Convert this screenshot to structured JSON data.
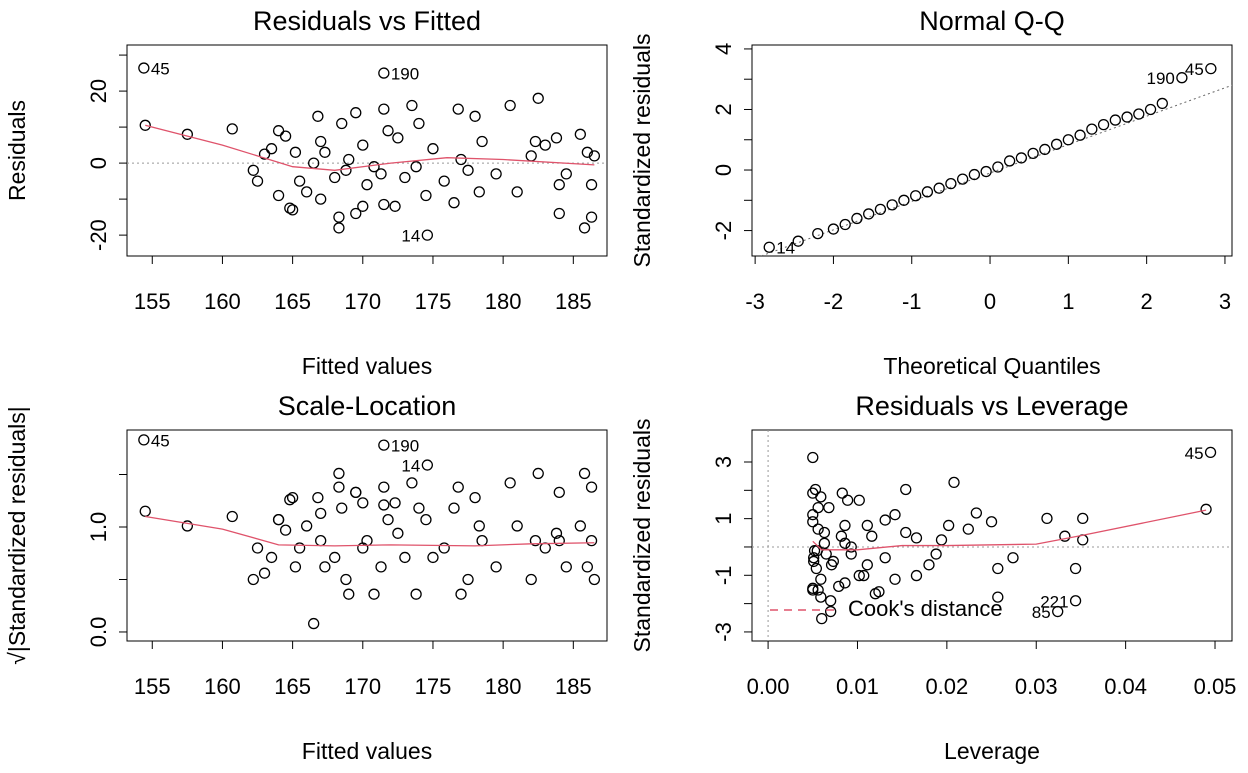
{
  "chart_data": [
    {
      "type": "scatter",
      "title": "Residuals vs Fitted",
      "xlabel": "Fitted values",
      "ylabel": "Residuals",
      "xlim": [
        153.2,
        187.4
      ],
      "ylim": [
        -25.8,
        32.8
      ],
      "xticks": [
        155,
        160,
        165,
        170,
        175,
        180,
        185
      ],
      "yticks": [
        -20,
        {
          "value": -10,
          "label": null
        },
        0,
        {
          "value": 10,
          "label": null
        },
        20,
        {
          "value": 30,
          "label": null
        }
      ],
      "color": "#000000",
      "hline": 0,
      "x": [
        154.5,
        154.4,
        157.5,
        160.7,
        162.2,
        162.5,
        163,
        163.5,
        164,
        164,
        164.5,
        164.8,
        165,
        165.2,
        165.5,
        166,
        166.5,
        166.8,
        167,
        167,
        167.3,
        168,
        168.3,
        168.3,
        168.5,
        168.8,
        169,
        169.5,
        169.5,
        170,
        170,
        170.3,
        170.8,
        171.3,
        171.5,
        171.5,
        171.5,
        171.8,
        172.3,
        172.5,
        173,
        173.5,
        173.8,
        174,
        174.5,
        174.6,
        175,
        175.8,
        176.5,
        176.8,
        177,
        177.5,
        178,
        178.3,
        178.5,
        179.5,
        180.5,
        181,
        182,
        182.3,
        182.5,
        183,
        183.8,
        184,
        184,
        184.5,
        185.5,
        185.8,
        186,
        186.3,
        186.3,
        186.5
      ],
      "values": [
        10.5,
        26.4,
        8,
        9.5,
        -2,
        -5,
        2.5,
        4,
        9,
        -9,
        7.5,
        -12.5,
        -13,
        3,
        -5,
        -8,
        0,
        13,
        -10,
        6,
        3,
        -4,
        -18,
        -15,
        11,
        -2,
        1,
        14,
        -14,
        -12,
        5,
        -6,
        -1,
        -3,
        25,
        15,
        -11.5,
        9,
        -12,
        7,
        -4,
        16,
        -1,
        11,
        -9,
        -20,
        4,
        -5,
        -11,
        15,
        1,
        -2,
        13,
        -8,
        6,
        -3,
        16,
        -8,
        2,
        6,
        18,
        5,
        7,
        -6,
        -14,
        -3,
        8,
        -18,
        3,
        -6,
        -15,
        2
      ],
      "point_labels": [
        null,
        "45",
        null,
        null,
        null,
        null,
        null,
        null,
        null,
        null,
        null,
        null,
        null,
        null,
        null,
        null,
        null,
        null,
        null,
        null,
        null,
        null,
        null,
        null,
        null,
        null,
        null,
        null,
        null,
        null,
        null,
        null,
        null,
        null,
        "190",
        null,
        null,
        null,
        null,
        null,
        null,
        null,
        null,
        null,
        null,
        "14",
        null,
        null,
        null,
        null,
        null,
        null,
        null,
        null,
        null,
        null,
        null,
        null,
        null,
        null,
        null,
        null,
        null,
        null,
        null,
        null,
        null,
        null,
        null,
        null,
        null,
        null
      ],
      "smooth": {
        "color": "#DF536B",
        "x": [
          154.5,
          160,
          165,
          168,
          172,
          176,
          180,
          186.5
        ],
        "y": [
          10.5,
          5,
          -1,
          -2,
          0,
          1.5,
          1,
          -0.5
        ]
      }
    },
    {
      "type": "scatter",
      "title": "Normal Q-Q",
      "xlabel": "Theoretical Quantiles",
      "ylabel": "Standardized residuals",
      "xlim": [
        -3.04,
        3.09
      ],
      "ylim": [
        -2.84,
        4.13
      ],
      "xticks": [
        -3,
        -2,
        -1,
        0,
        1,
        2,
        3
      ],
      "yticks": [
        -2,
        {
          "value": -1,
          "label": null
        },
        0,
        {
          "value": 1,
          "label": null
        },
        2,
        {
          "value": 3,
          "label": null
        },
        4
      ],
      "color": "#000000",
      "x": [
        -2.82,
        -2.45,
        -2.2,
        -2.0,
        -1.85,
        -1.7,
        -1.55,
        -1.4,
        -1.25,
        -1.1,
        -0.95,
        -0.8,
        -0.65,
        -0.5,
        -0.35,
        -0.2,
        -0.05,
        0.1,
        0.25,
        0.4,
        0.55,
        0.7,
        0.85,
        1.0,
        1.15,
        1.3,
        1.45,
        1.6,
        1.75,
        1.9,
        2.05,
        2.2,
        2.45,
        2.82
      ],
      "values": [
        -2.55,
        -2.35,
        -2.1,
        -1.95,
        -1.8,
        -1.6,
        -1.45,
        -1.3,
        -1.15,
        -1.0,
        -0.85,
        -0.72,
        -0.6,
        -0.45,
        -0.3,
        -0.15,
        -0.05,
        0.1,
        0.3,
        0.4,
        0.55,
        0.68,
        0.85,
        1.0,
        1.15,
        1.35,
        1.5,
        1.65,
        1.75,
        1.85,
        2.0,
        2.2,
        3.05,
        3.35
      ],
      "point_labels": [
        "14",
        null,
        null,
        null,
        null,
        null,
        null,
        null,
        null,
        null,
        null,
        null,
        null,
        null,
        null,
        null,
        null,
        null,
        null,
        null,
        null,
        null,
        null,
        null,
        null,
        null,
        null,
        null,
        null,
        null,
        null,
        null,
        "190",
        "45"
      ],
      "qq_line": {
        "x": [
          -3.04,
          3.09
        ],
        "y": [
          -2.95,
          2.8
        ]
      }
    },
    {
      "type": "scatter",
      "title": "Scale-Location",
      "xlabel": "Fitted values",
      "ylabel": "√|Standardized residuals|",
      "xlim": [
        153.2,
        187.4
      ],
      "ylim": [
        -0.086,
        1.924
      ],
      "xticks": [
        155,
        160,
        165,
        170,
        175,
        180,
        185
      ],
      "yticks": [
        {
          "value": 0,
          "label": "0.0"
        },
        {
          "value": 0.5,
          "label": null
        },
        {
          "value": 1,
          "label": "1.0"
        },
        {
          "value": 1.5,
          "label": null
        }
      ],
      "color": "#000000",
      "x": [
        154.5,
        154.4,
        157.5,
        160.7,
        162.2,
        162.5,
        163,
        163.5,
        164,
        164,
        164.5,
        164.8,
        165,
        165.2,
        165.5,
        166,
        166.5,
        166.8,
        167,
        167,
        167.3,
        168,
        168.3,
        168.3,
        168.5,
        168.8,
        169,
        169.5,
        169.5,
        170,
        170,
        170.3,
        170.8,
        171.3,
        171.5,
        171.5,
        171.5,
        171.8,
        172.3,
        172.5,
        173,
        173.5,
        173.8,
        174,
        174.5,
        174.6,
        175,
        175.8,
        176.5,
        176.8,
        177,
        177.5,
        178,
        178.3,
        178.5,
        179.5,
        180.5,
        181,
        182,
        182.3,
        182.5,
        183,
        183.8,
        184,
        184,
        184.5,
        185.5,
        185.8,
        186,
        186.3,
        186.3,
        186.5
      ],
      "values": [
        1.15,
        1.83,
        1.01,
        1.1,
        0.5,
        0.8,
        0.56,
        0.71,
        1.07,
        1.07,
        0.97,
        1.26,
        1.28,
        0.62,
        0.8,
        1.01,
        0.08,
        1.28,
        1.13,
        0.87,
        0.62,
        0.71,
        1.51,
        1.38,
        1.18,
        0.5,
        0.36,
        1.33,
        1.33,
        1.23,
        0.8,
        0.87,
        0.36,
        0.62,
        1.78,
        1.38,
        1.21,
        1.07,
        1.23,
        0.94,
        0.71,
        1.42,
        0.36,
        1.18,
        1.07,
        1.59,
        0.71,
        0.8,
        1.18,
        1.38,
        0.36,
        0.5,
        1.28,
        1.01,
        0.87,
        0.62,
        1.42,
        1.01,
        0.5,
        0.87,
        1.51,
        0.8,
        0.94,
        0.87,
        1.33,
        0.62,
        1.01,
        1.51,
        0.62,
        0.87,
        1.38,
        0.5
      ],
      "point_labels": [
        null,
        "45",
        null,
        null,
        null,
        null,
        null,
        null,
        null,
        null,
        null,
        null,
        null,
        null,
        null,
        null,
        null,
        null,
        null,
        null,
        null,
        null,
        null,
        null,
        null,
        null,
        null,
        null,
        null,
        null,
        null,
        null,
        null,
        null,
        "190",
        null,
        null,
        null,
        null,
        null,
        null,
        null,
        null,
        null,
        null,
        "14",
        null,
        null,
        null,
        null,
        null,
        null,
        null,
        null,
        null,
        null,
        null,
        null,
        null,
        null,
        null,
        null,
        null,
        null,
        null,
        null,
        null,
        null,
        null,
        null,
        null,
        null
      ],
      "smooth": {
        "color": "#DF536B",
        "x": [
          154.5,
          160,
          164,
          168,
          172,
          178,
          182,
          186.5
        ],
        "y": [
          1.1,
          0.98,
          0.83,
          0.82,
          0.83,
          0.82,
          0.84,
          0.85
        ]
      }
    },
    {
      "type": "scatter",
      "title": "Residuals vs Leverage",
      "xlabel": "Leverage",
      "ylabel": "Standardized residuals",
      "xlim": [
        -0.0018,
        0.0519
      ],
      "ylim": [
        -3.32,
        4.13
      ],
      "xticks": [
        {
          "value": 0,
          "label": "0.00"
        },
        0.01,
        0.02,
        0.03,
        0.04,
        0.05
      ],
      "yticks": [
        -3,
        {
          "value": -2,
          "label": null
        },
        -1,
        {
          "value": 0,
          "label": null
        },
        1,
        {
          "value": 2,
          "label": null
        },
        3
      ],
      "color": "#000000",
      "hline": 0,
      "vline": 0,
      "x": [
        0.049,
        0.0495,
        0.0352,
        0.0233,
        0.0188,
        0.018,
        0.0166,
        0.0154,
        0.0142,
        0.0142,
        0.0131,
        0.0124,
        0.012,
        0.0116,
        0.0111,
        0.0102,
        0.0093,
        0.0089,
        0.0086,
        0.0086,
        0.0082,
        0.0073,
        0.007,
        0.007,
        0.0068,
        0.0065,
        0.0063,
        0.0059,
        0.0059,
        0.0056,
        0.0056,
        0.0054,
        0.0052,
        0.0051,
        0.005,
        0.005,
        0.005,
        0.005,
        0.005,
        0.005,
        0.0051,
        0.0053,
        0.0055,
        0.0056,
        0.0059,
        0.006,
        0.0063,
        0.0071,
        0.0079,
        0.0083,
        0.0086,
        0.0093,
        0.0102,
        0.0107,
        0.0111,
        0.0131,
        0.0154,
        0.0166,
        0.0194,
        0.0202,
        0.0208,
        0.0224,
        0.025,
        0.0257,
        0.0257,
        0.0274,
        0.0312,
        0.0324,
        0.0332,
        0.0344,
        0.0344,
        0.0352
      ],
      "values": [
        1.33,
        3.34,
        1.01,
        1.2,
        -0.25,
        -0.63,
        0.32,
        0.51,
        1.14,
        -1.14,
        0.95,
        -1.58,
        -1.65,
        0.38,
        -0.63,
        -1.01,
        0,
        1.65,
        -1.27,
        0.76,
        0.38,
        -0.51,
        -2.28,
        -1.9,
        1.39,
        -0.25,
        0.13,
        1.77,
        -1.77,
        -1.52,
        0.63,
        -0.76,
        -0.13,
        -0.38,
        3.16,
        1.9,
        -1.46,
        1.14,
        -1.52,
        0.89,
        -0.51,
        2.03,
        -0.13,
        1.39,
        -1.14,
        -2.53,
        0.51,
        -0.63,
        -1.39,
        1.9,
        0.13,
        -0.25,
        1.65,
        -1.01,
        0.76,
        -0.38,
        2.03,
        -1.01,
        0.25,
        0.76,
        2.28,
        0.63,
        0.89,
        -0.76,
        -1.77,
        -0.38,
        1.01,
        -2.28,
        0.38,
        -0.76,
        -1.9,
        0.25
      ],
      "point_labels": [
        null,
        "45",
        null,
        null,
        null,
        null,
        null,
        null,
        null,
        null,
        null,
        null,
        null,
        null,
        null,
        null,
        null,
        null,
        null,
        null,
        null,
        null,
        null,
        null,
        null,
        null,
        null,
        null,
        null,
        null,
        null,
        null,
        null,
        null,
        null,
        null,
        null,
        null,
        null,
        null,
        null,
        null,
        null,
        null,
        null,
        null,
        null,
        null,
        null,
        null,
        null,
        null,
        null,
        null,
        null,
        null,
        null,
        null,
        null,
        null,
        null,
        null,
        null,
        null,
        null,
        null,
        null,
        "85",
        null,
        null,
        "221",
        null
      ],
      "smooth": {
        "color": "#DF536B",
        "x": [
          0.005,
          0.006,
          0.01,
          0.015,
          0.02,
          0.03,
          0.035,
          0.049
        ],
        "y": [
          0.2,
          -0.1,
          -0.1,
          0.05,
          0.05,
          0.1,
          0.4,
          1.3
        ]
      },
      "legend": {
        "position": "bottomleft",
        "entries": [
          {
            "name": "Cook's distance",
            "color": "#DF536B",
            "line_style": "dashed"
          }
        ]
      }
    }
  ]
}
